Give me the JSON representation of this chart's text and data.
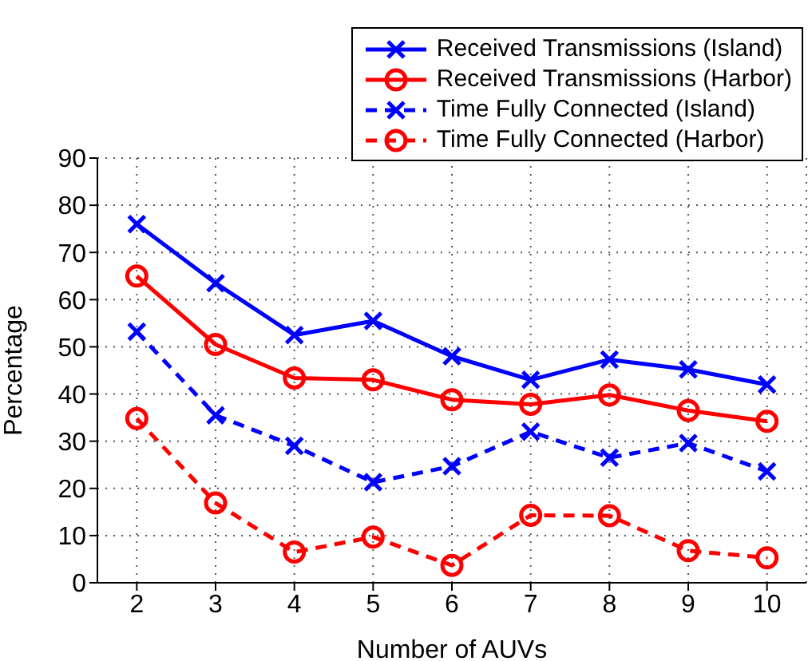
{
  "chart_data": {
    "type": "line",
    "xlabel": "Number of AUVs",
    "ylabel": "Percentage",
    "x": [
      2,
      3,
      4,
      5,
      6,
      7,
      8,
      9,
      10
    ],
    "xlim": [
      1.5,
      10.5
    ],
    "xticks": [
      2,
      3,
      4,
      5,
      6,
      7,
      8,
      9,
      10
    ],
    "ylim": [
      0,
      90
    ],
    "yticks": [
      0,
      10,
      20,
      30,
      40,
      50,
      60,
      70,
      80,
      90
    ],
    "grid": true,
    "legend": "top right",
    "series": [
      {
        "name": "Received Transmissions (Island)",
        "color": "#0000ff",
        "marker": "cross",
        "line_style": "solid",
        "values": [
          76,
          63.5,
          52.5,
          55.5,
          48,
          43,
          47.3,
          45.2,
          42
        ]
      },
      {
        "name": "Received Transmissions (Harbor)",
        "color": "#ff0000",
        "marker": "circle",
        "line_style": "solid",
        "values": [
          65,
          50.5,
          43.4,
          43,
          38.8,
          37.8,
          39.8,
          36.5,
          34.2
        ]
      },
      {
        "name": "Time Fully Connected (Island)",
        "color": "#0000ff",
        "marker": "cross",
        "line_style": "dashed",
        "values": [
          53.2,
          35.5,
          29,
          21.3,
          24.7,
          32,
          26.5,
          29.6,
          23.6
        ]
      },
      {
        "name": "Time Fully Connected (Harbor)",
        "color": "#ff0000",
        "marker": "circle",
        "line_style": "dashed",
        "values": [
          34.8,
          16.9,
          6.5,
          9.7,
          3.7,
          14.3,
          14.2,
          6.8,
          5.3
        ]
      }
    ]
  }
}
